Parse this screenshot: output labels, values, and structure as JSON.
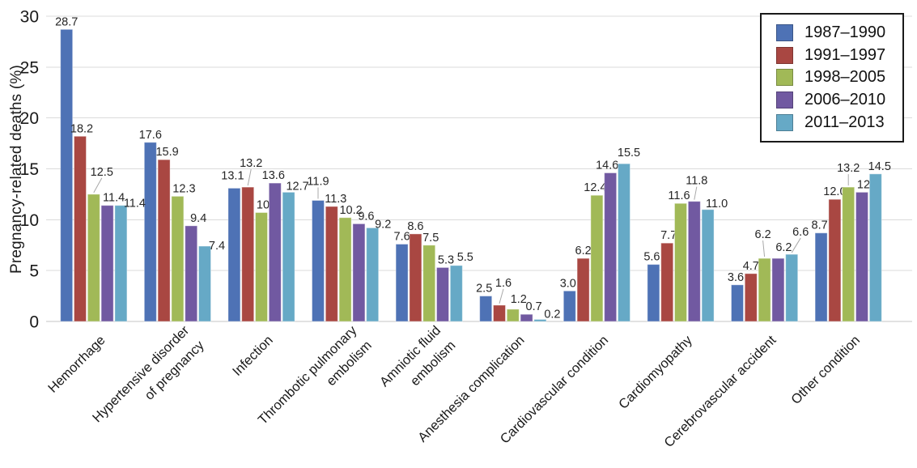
{
  "chart_data": {
    "type": "bar",
    "title": "",
    "xlabel": "",
    "ylabel": "Pregnancy-related deaths (%)",
    "ylim": [
      0,
      30
    ],
    "yticks": [
      0,
      5,
      10,
      15,
      20,
      25,
      30
    ],
    "grid": true,
    "legend_position": "top-right",
    "value_label_decimals": 1,
    "categories": [
      [
        "Hemorrhage"
      ],
      [
        "Hypertensive disorder",
        "of pregnancy"
      ],
      [
        "Infection"
      ],
      [
        "Thrombotic pulmonary",
        "embolism"
      ],
      [
        "Amniotic fluid",
        "embolism"
      ],
      [
        "Anesthesia complication"
      ],
      [
        "Cardiovascular condition"
      ],
      [
        "Cardiomyopathy"
      ],
      [
        "Cerebrovascular accident"
      ],
      [
        "Other condition"
      ]
    ],
    "series": [
      {
        "name": "1987–1990",
        "color": "#4e72b5",
        "values": [
          28.7,
          17.6,
          13.1,
          11.9,
          7.6,
          2.5,
          3.0,
          5.6,
          3.6,
          8.7
        ]
      },
      {
        "name": "1991–1997",
        "color": "#a94742",
        "values": [
          18.2,
          15.9,
          13.2,
          11.3,
          8.6,
          1.6,
          6.2,
          7.7,
          4.7,
          12.0
        ]
      },
      {
        "name": "1998–2005",
        "color": "#a1b957",
        "values": [
          12.5,
          12.3,
          10.7,
          10.2,
          7.5,
          1.2,
          12.4,
          11.6,
          6.2,
          13.2
        ]
      },
      {
        "name": "2006–2010",
        "color": "#7159a1",
        "values": [
          11.4,
          9.4,
          13.6,
          9.6,
          5.3,
          0.7,
          14.6,
          11.8,
          6.2,
          12.7
        ]
      },
      {
        "name": "2011–2013",
        "color": "#66a9c6",
        "values": [
          11.4,
          7.4,
          12.7,
          9.2,
          5.5,
          0.2,
          15.5,
          11.0,
          6.6,
          14.5
        ]
      }
    ],
    "label_offsets": [
      [
        [
          0,
          0,
          0
        ],
        [
          2,
          0,
          0
        ],
        [
          10,
          -18,
          1
        ],
        [
          8,
          0,
          0
        ],
        [
          17,
          7,
          0
        ]
      ],
      [
        [
          0,
          0,
          0
        ],
        [
          4,
          0,
          0
        ],
        [
          8,
          0,
          0
        ],
        [
          9,
          0,
          0
        ],
        [
          15,
          9,
          0
        ]
      ],
      [
        [
          -2,
          -6,
          0
        ],
        [
          4,
          -20,
          1
        ],
        [
          8,
          0,
          0
        ],
        [
          -2,
          0,
          0
        ],
        [
          11,
          2,
          0
        ]
      ],
      [
        [
          0,
          -14,
          1
        ],
        [
          5,
          0,
          0
        ],
        [
          7,
          0,
          0
        ],
        [
          9,
          0,
          0
        ],
        [
          13,
          5,
          0
        ]
      ],
      [
        [
          0,
          0,
          0
        ],
        [
          0,
          0,
          0
        ],
        [
          2,
          0,
          0
        ],
        [
          4,
          0,
          0
        ],
        [
          11,
          -1,
          0
        ]
      ],
      [
        [
          -2,
          0,
          0
        ],
        [
          5,
          -18,
          1
        ],
        [
          7,
          -3,
          0
        ],
        [
          9,
          0,
          0
        ],
        [
          15,
          3,
          0
        ]
      ],
      [
        [
          -2,
          0,
          0
        ],
        [
          0,
          0,
          0
        ],
        [
          -2,
          0,
          0
        ],
        [
          -4,
          0,
          0
        ],
        [
          6,
          -4,
          0
        ]
      ],
      [
        [
          -2,
          0,
          0
        ],
        [
          2,
          0,
          0
        ],
        [
          -2,
          0,
          0
        ],
        [
          3,
          -16,
          1
        ],
        [
          11,
          2,
          0
        ]
      ],
      [
        [
          -2,
          0,
          0
        ],
        [
          0,
          0,
          0
        ],
        [
          -2,
          -20,
          1
        ],
        [
          7,
          -4,
          0
        ],
        [
          11,
          -18,
          1
        ]
      ],
      [
        [
          -2,
          0,
          0
        ],
        [
          0,
          0,
          0
        ],
        [
          0,
          -14,
          1
        ],
        [
          8,
          0,
          0
        ],
        [
          5,
          0,
          0
        ]
      ]
    ],
    "colors": {
      "grid": "#dbdbdb",
      "baseline": "#c4c4c4",
      "axis_text": "#1a1a1a",
      "value_text": "#262626",
      "leader_line": "#a8a8a8"
    }
  }
}
